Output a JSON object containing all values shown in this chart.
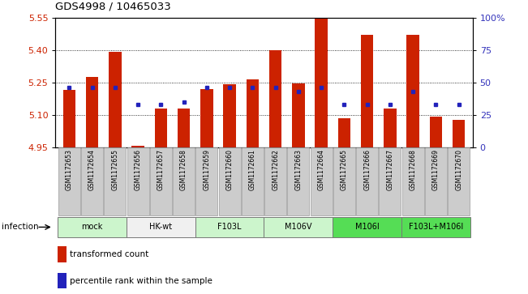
{
  "title": "GDS4998 / 10465033",
  "samples": [
    "GSM1172653",
    "GSM1172654",
    "GSM1172655",
    "GSM1172656",
    "GSM1172657",
    "GSM1172658",
    "GSM1172659",
    "GSM1172660",
    "GSM1172661",
    "GSM1172662",
    "GSM1172663",
    "GSM1172664",
    "GSM1172665",
    "GSM1172666",
    "GSM1172667",
    "GSM1172668",
    "GSM1172669",
    "GSM1172670"
  ],
  "red_values": [
    5.215,
    5.275,
    5.39,
    4.955,
    5.13,
    5.13,
    5.22,
    5.24,
    5.265,
    5.4,
    5.245,
    5.55,
    5.085,
    5.47,
    5.13,
    5.47,
    5.09,
    5.075
  ],
  "blue_percentiles": [
    46,
    46,
    46,
    33,
    33,
    35,
    46,
    46,
    46,
    46,
    43,
    46,
    33,
    33,
    33,
    43,
    33,
    33
  ],
  "ymin": 4.95,
  "ymax": 5.55,
  "yticks": [
    4.95,
    5.1,
    5.25,
    5.4,
    5.55
  ],
  "y2ticks": [
    0,
    25,
    50,
    75,
    100
  ],
  "y2ticklabels": [
    "0",
    "25",
    "50",
    "75",
    "100%"
  ],
  "groups": [
    {
      "label": "mock",
      "color": "#ccf5cc",
      "start": 0,
      "end": 3
    },
    {
      "label": "HK-wt",
      "color": "#f0f0f0",
      "start": 3,
      "end": 6
    },
    {
      "label": "F103L",
      "color": "#ccf5cc",
      "start": 6,
      "end": 9
    },
    {
      "label": "M106V",
      "color": "#ccf5cc",
      "start": 9,
      "end": 12
    },
    {
      "label": "M106I",
      "color": "#55dd55",
      "start": 12,
      "end": 15
    },
    {
      "label": "F103L+M106I",
      "color": "#55dd55",
      "start": 15,
      "end": 18
    }
  ],
  "bar_color": "#cc2200",
  "blue_color": "#2222bb",
  "baseline": 4.95,
  "ylabel_color": "#cc2200",
  "y2label_color": "#3333bb",
  "xtick_box_color": "#cccccc",
  "xtick_box_edge": "#999999",
  "infection_label": "infection",
  "legend": [
    {
      "color": "#cc2200",
      "marker": "s",
      "label": "transformed count"
    },
    {
      "color": "#2222bb",
      "marker": "s",
      "label": "percentile rank within the sample"
    }
  ]
}
